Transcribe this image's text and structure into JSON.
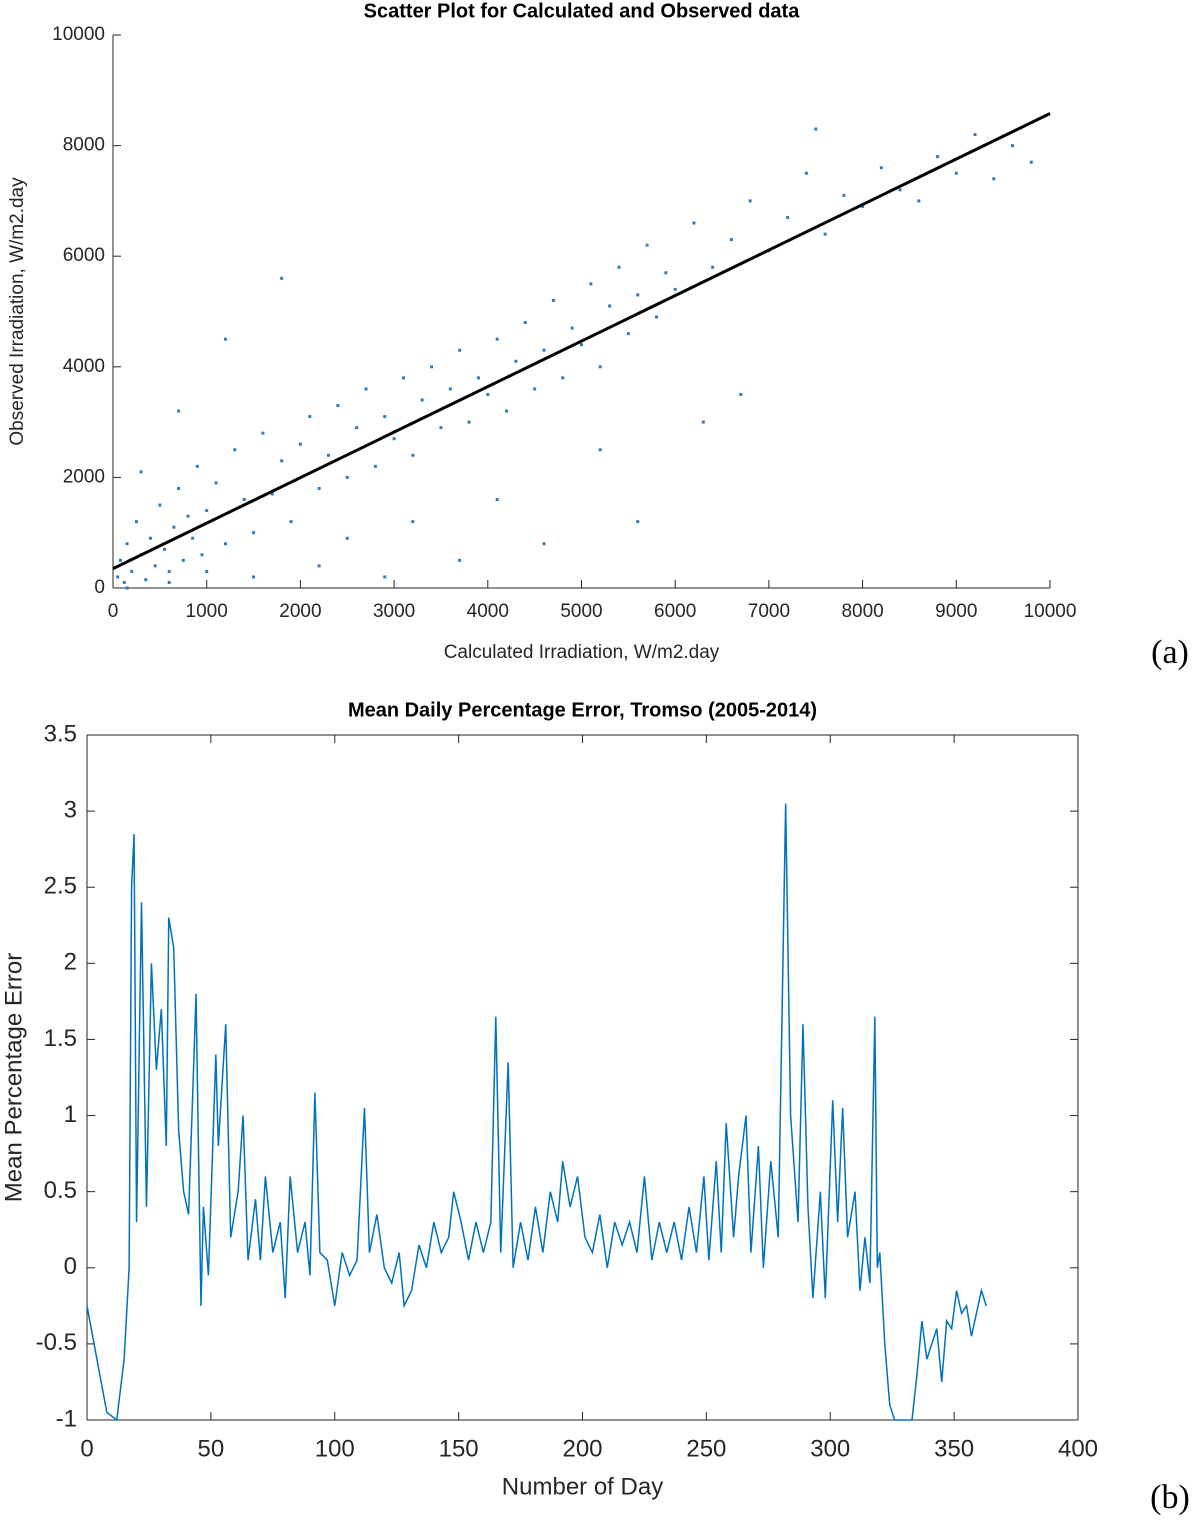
{
  "chart_data": [
    {
      "type": "scatter",
      "title": "Scatter Plot for Calculated and Observed data",
      "x_label": "Calculated Irradiation, W/m2.day",
      "y_label": "Observed Irradiation, W/m2.day",
      "panel_label": "(a)",
      "xlim": [
        0,
        10000
      ],
      "ylim": [
        0,
        10000
      ],
      "xticks": [
        0,
        1000,
        2000,
        3000,
        4000,
        5000,
        6000,
        7000,
        8000,
        9000,
        10000
      ],
      "yticks": [
        0,
        2000,
        4000,
        6000,
        8000,
        10000
      ],
      "series": [
        {
          "color": "#2d7dbb",
          "x": [
            50,
            80,
            120,
            150,
            200,
            250,
            300,
            350,
            400,
            450,
            500,
            550,
            600,
            650,
            700,
            750,
            800,
            850,
            900,
            950,
            1000,
            1100,
            1200,
            1300,
            1400,
            1500,
            1600,
            1700,
            1800,
            1900,
            2000,
            2100,
            2200,
            2300,
            2400,
            2500,
            2600,
            2700,
            2800,
            2900,
            3000,
            3100,
            3200,
            3300,
            3400,
            3500,
            3600,
            3700,
            3800,
            3900,
            4000,
            4100,
            4200,
            4300,
            4400,
            4500,
            4600,
            4700,
            4800,
            4900,
            5000,
            5100,
            5200,
            5300,
            5400,
            5500,
            5600,
            5700,
            5800,
            5900,
            6000,
            6200,
            6400,
            6600,
            6800,
            7000,
            7200,
            7400,
            7600,
            7800,
            8000,
            8200,
            8400,
            8600,
            8800,
            9000,
            9200,
            9400,
            9600,
            9800,
            300,
            700,
            1200,
            1800,
            2500,
            3200,
            4100,
            5200,
            6300,
            7500,
            150,
            600,
            1000,
            1500,
            2200,
            2900,
            3700,
            4600,
            5600,
            6700
          ],
          "y": [
            200,
            500,
            100,
            800,
            300,
            1200,
            600,
            150,
            900,
            400,
            1500,
            700,
            300,
            1100,
            1800,
            500,
            1300,
            900,
            2200,
            600,
            1400,
            1900,
            800,
            2500,
            1600,
            1000,
            2800,
            1700,
            2300,
            1200,
            2600,
            3100,
            1800,
            2400,
            3300,
            2000,
            2900,
            3600,
            2200,
            3100,
            2700,
            3800,
            2400,
            3400,
            4000,
            2900,
            3600,
            4300,
            3000,
            3800,
            3500,
            4500,
            3200,
            4100,
            4800,
            3600,
            4300,
            5200,
            3800,
            4700,
            4400,
            5500,
            4000,
            5100,
            5800,
            4600,
            5300,
            6200,
            4900,
            5700,
            5400,
            6600,
            5800,
            6300,
            7000,
            6100,
            6700,
            7500,
            6400,
            7100,
            6900,
            7600,
            7200,
            7000,
            7800,
            7500,
            8200,
            7400,
            8000,
            7700,
            2100,
            3200,
            4500,
            5600,
            900,
            1200,
            1600,
            2500,
            3000,
            8300,
            0,
            100,
            300,
            200,
            400,
            200,
            500,
            800,
            1200,
            3500
          ]
        }
      ],
      "fit_line": {
        "color": "#000000",
        "x": [
          0,
          10000
        ],
        "y": [
          350,
          8580
        ]
      }
    },
    {
      "type": "line",
      "title": "Mean Daily Percentage Error, Tromso (2005-2014)",
      "x_label": "Number of Day",
      "y_label": "Mean Percentage Error",
      "panel_label": "(b)",
      "xlim": [
        0,
        400
      ],
      "ylim": [
        -1,
        3.5
      ],
      "xticks": [
        0,
        50,
        100,
        150,
        200,
        250,
        300,
        350,
        400
      ],
      "yticks": [
        -1,
        -0.5,
        0,
        0.5,
        1,
        1.5,
        2,
        2.5,
        3,
        3.5
      ],
      "series": [
        {
          "color": "#0072bd",
          "x": [
            0,
            4,
            8,
            12,
            15,
            17,
            18,
            19,
            20,
            22,
            24,
            26,
            28,
            30,
            32,
            33,
            35,
            37,
            39,
            41,
            43,
            44,
            46,
            47,
            49,
            52,
            53,
            56,
            58,
            61,
            63,
            65,
            68,
            70,
            72,
            75,
            78,
            80,
            82,
            85,
            88,
            90,
            92,
            94,
            97,
            100,
            103,
            106,
            109,
            112,
            114,
            117,
            120,
            123,
            126,
            128,
            131,
            134,
            137,
            140,
            143,
            146,
            148,
            151,
            154,
            157,
            160,
            163,
            165,
            167,
            170,
            172,
            175,
            178,
            181,
            184,
            187,
            190,
            192,
            195,
            198,
            201,
            204,
            207,
            210,
            213,
            216,
            219,
            222,
            225,
            228,
            231,
            234,
            237,
            240,
            243,
            246,
            249,
            251,
            254,
            256,
            258,
            261,
            263,
            266,
            268,
            271,
            273,
            276,
            279,
            282,
            284,
            287,
            289,
            291,
            293,
            296,
            298,
            301,
            303,
            305,
            307,
            310,
            312,
            314,
            316,
            318,
            319,
            320,
            322,
            324,
            326,
            330,
            333,
            335,
            337,
            339,
            341,
            343,
            345,
            347,
            349,
            351,
            353,
            355,
            357,
            359,
            361,
            363
          ],
          "values": [
            -0.25,
            -0.6,
            -0.95,
            -1,
            -0.6,
            0,
            2.5,
            2.85,
            0.3,
            2.4,
            0.4,
            2,
            1.3,
            1.7,
            0.8,
            2.3,
            2.1,
            0.9,
            0.5,
            0.35,
            1.3,
            1.8,
            -0.25,
            0.4,
            -0.05,
            1.4,
            0.8,
            1.6,
            0.2,
            0.5,
            1,
            0.05,
            0.45,
            0.05,
            0.6,
            0.1,
            0.3,
            -0.2,
            0.6,
            0.1,
            0.3,
            -0.05,
            1.15,
            0.1,
            0.05,
            -0.25,
            0.1,
            -0.05,
            0.05,
            1.05,
            0.1,
            0.35,
            0,
            -0.1,
            0.1,
            -0.25,
            -0.15,
            0.15,
            0,
            0.3,
            0.1,
            0.2,
            0.5,
            0.3,
            0.05,
            0.3,
            0.1,
            0.3,
            1.65,
            0.1,
            1.35,
            0,
            0.3,
            0.05,
            0.4,
            0.1,
            0.5,
            0.3,
            0.7,
            0.4,
            0.6,
            0.2,
            0.1,
            0.35,
            0,
            0.3,
            0.15,
            0.3,
            0.1,
            0.6,
            0.05,
            0.3,
            0.1,
            0.3,
            0.05,
            0.4,
            0.1,
            0.6,
            0.05,
            0.7,
            0.1,
            0.95,
            0.2,
            0.6,
            1,
            0.1,
            0.8,
            0,
            0.7,
            0.2,
            3.05,
            1,
            0.3,
            1.6,
            0.4,
            -0.2,
            0.5,
            -0.2,
            1.1,
            0.3,
            1.05,
            0.2,
            0.5,
            -0.15,
            0.2,
            -0.1,
            1.65,
            0,
            0.1,
            -0.5,
            -0.9,
            -1,
            -1,
            -1,
            -0.7,
            -0.35,
            -0.6,
            -0.5,
            -0.4,
            -0.75,
            -0.35,
            -0.4,
            -0.15,
            -0.3,
            -0.25,
            -0.45,
            -0.3,
            -0.15,
            -0.25
          ]
        }
      ]
    }
  ]
}
